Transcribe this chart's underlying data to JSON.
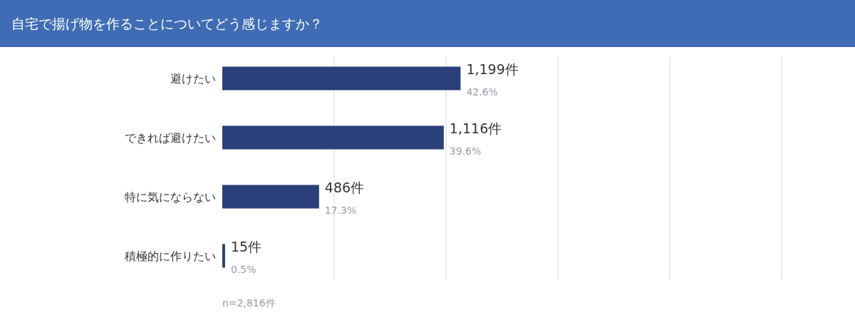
{
  "chart_data": {
    "type": "bar",
    "orientation": "horizontal",
    "title": "自宅で揚げ物を作ることについてどう感じますか？",
    "categories": [
      "避けたい",
      "できれば避けたい",
      "特に気にならない",
      "積極的に作りたい"
    ],
    "values": [
      42.6,
      39.6,
      17.3,
      0.5
    ],
    "value_labels": [
      "1,199件\n42.6%",
      "1,116件\n39.6%",
      "486件\n17.3%",
      "15件\n0.5%"
    ],
    "color": "#2b3f7a",
    "xlim": [
      0,
      100
    ],
    "xticks": [
      {
        "value": 20,
        "label": null
      },
      {
        "value": 40,
        "label": null
      },
      {
        "value": 60,
        "label": null
      },
      {
        "value": 80,
        "label": null
      },
      {
        "value": 100,
        "label": null
      }
    ],
    "grid": "x",
    "annotations": [
      "n=2,816件"
    ]
  }
}
